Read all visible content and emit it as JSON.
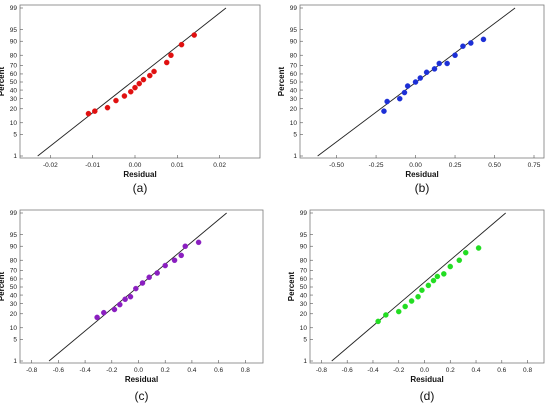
{
  "chart_data": [
    {
      "type": "scatter",
      "caption": "(a)",
      "xlabel": "Residual",
      "ylabel": "Percent",
      "xlim": [
        -0.026,
        0.026
      ],
      "yscale": "normal-probability",
      "x_ticks": [
        -0.02,
        -0.01,
        0.0,
        0.01,
        0.02
      ],
      "x_tick_labels": [
        "-0.02",
        "-0.01",
        "0.00",
        "0.01",
        "0.02"
      ],
      "y_ticks": [
        1,
        5,
        10,
        20,
        30,
        40,
        50,
        60,
        70,
        80,
        90,
        95,
        99
      ],
      "point_color": "#e01010",
      "fit_line": {
        "x1": -0.023,
        "y1": 1,
        "x2": 0.0215,
        "y2": 99
      },
      "points": [
        {
          "x": -0.011,
          "y": 16
        },
        {
          "x": -0.0095,
          "y": 18
        },
        {
          "x": -0.0065,
          "y": 21
        },
        {
          "x": -0.0045,
          "y": 28
        },
        {
          "x": -0.0025,
          "y": 33
        },
        {
          "x": -0.001,
          "y": 38
        },
        {
          "x": 0.0,
          "y": 43
        },
        {
          "x": 0.001,
          "y": 48
        },
        {
          "x": 0.002,
          "y": 53
        },
        {
          "x": 0.0035,
          "y": 58
        },
        {
          "x": 0.0045,
          "y": 63
        },
        {
          "x": 0.0075,
          "y": 73
        },
        {
          "x": 0.0085,
          "y": 80
        },
        {
          "x": 0.011,
          "y": 88
        },
        {
          "x": 0.014,
          "y": 93
        }
      ]
    },
    {
      "type": "scatter",
      "caption": "(b)",
      "xlabel": "Residual",
      "ylabel": "Percent",
      "xlim": [
        -0.7,
        0.75
      ],
      "yscale": "normal-probability",
      "x_ticks": [
        -0.5,
        -0.25,
        0.0,
        0.25,
        0.5,
        0.75
      ],
      "x_tick_labels": [
        "-0.50",
        "-0.25",
        "0.00",
        "0.25",
        "0.50",
        "0.75"
      ],
      "y_ticks": [
        1,
        5,
        10,
        20,
        30,
        40,
        50,
        60,
        70,
        80,
        90,
        95,
        99
      ],
      "point_color": "#1c2fd6",
      "fit_line": {
        "x1": -0.62,
        "y1": 1,
        "x2": 0.63,
        "y2": 99
      },
      "points": [
        {
          "x": -0.2,
          "y": 18
        },
        {
          "x": -0.18,
          "y": 27
        },
        {
          "x": -0.1,
          "y": 30
        },
        {
          "x": -0.07,
          "y": 37
        },
        {
          "x": -0.05,
          "y": 45
        },
        {
          "x": 0.0,
          "y": 50
        },
        {
          "x": 0.03,
          "y": 55
        },
        {
          "x": 0.07,
          "y": 62
        },
        {
          "x": 0.12,
          "y": 66
        },
        {
          "x": 0.15,
          "y": 72
        },
        {
          "x": 0.2,
          "y": 72
        },
        {
          "x": 0.25,
          "y": 80
        },
        {
          "x": 0.3,
          "y": 87
        },
        {
          "x": 0.35,
          "y": 89
        },
        {
          "x": 0.43,
          "y": 91
        }
      ]
    },
    {
      "type": "scatter",
      "caption": "(c)",
      "xlabel": "Residual",
      "ylabel": "Percent",
      "xlim": [
        -0.85,
        0.85
      ],
      "yscale": "normal-probability",
      "x_ticks": [
        -0.8,
        -0.6,
        -0.4,
        -0.2,
        0.0,
        0.2,
        0.4,
        0.6,
        0.8
      ],
      "x_tick_labels": [
        "-0.8",
        "-0.6",
        "-0.4",
        "-0.2",
        "0.0",
        "0.2",
        "0.4",
        "0.6",
        "0.8"
      ],
      "y_ticks": [
        1,
        5,
        10,
        20,
        30,
        40,
        50,
        60,
        70,
        80,
        90,
        95,
        99
      ],
      "point_color": "#8a1ec0",
      "fit_line": {
        "x1": -0.67,
        "y1": 1,
        "x2": 0.66,
        "y2": 99
      },
      "points": [
        {
          "x": -0.31,
          "y": 17
        },
        {
          "x": -0.26,
          "y": 21
        },
        {
          "x": -0.18,
          "y": 24
        },
        {
          "x": -0.14,
          "y": 29
        },
        {
          "x": -0.1,
          "y": 35
        },
        {
          "x": -0.06,
          "y": 38
        },
        {
          "x": -0.02,
          "y": 48
        },
        {
          "x": 0.03,
          "y": 55
        },
        {
          "x": 0.08,
          "y": 62
        },
        {
          "x": 0.14,
          "y": 67
        },
        {
          "x": 0.2,
          "y": 75
        },
        {
          "x": 0.27,
          "y": 80
        },
        {
          "x": 0.32,
          "y": 84
        },
        {
          "x": 0.35,
          "y": 90
        },
        {
          "x": 0.45,
          "y": 92
        }
      ]
    },
    {
      "type": "scatter",
      "caption": "(d)",
      "xlabel": "Residual",
      "ylabel": "Percent",
      "xlim": [
        -0.85,
        0.85
      ],
      "yscale": "normal-probability",
      "x_ticks": [
        -0.8,
        -0.6,
        -0.4,
        -0.2,
        0.0,
        0.2,
        0.4,
        0.6,
        0.8
      ],
      "x_tick_labels": [
        "-0.8",
        "-0.6",
        "-0.4",
        "-0.2",
        "0.0",
        "0.2",
        "0.4",
        "0.6",
        "0.8"
      ],
      "y_ticks": [
        1,
        5,
        10,
        20,
        30,
        40,
        50,
        60,
        70,
        80,
        90,
        95,
        99
      ],
      "point_color": "#22dd22",
      "fit_line": {
        "x1": -0.72,
        "y1": 1,
        "x2": 0.63,
        "y2": 99
      },
      "points": [
        {
          "x": -0.36,
          "y": 14
        },
        {
          "x": -0.3,
          "y": 19
        },
        {
          "x": -0.2,
          "y": 22
        },
        {
          "x": -0.15,
          "y": 27
        },
        {
          "x": -0.1,
          "y": 33
        },
        {
          "x": -0.05,
          "y": 38
        },
        {
          "x": -0.02,
          "y": 46
        },
        {
          "x": 0.03,
          "y": 52
        },
        {
          "x": 0.07,
          "y": 58
        },
        {
          "x": 0.1,
          "y": 63
        },
        {
          "x": 0.15,
          "y": 66
        },
        {
          "x": 0.2,
          "y": 74
        },
        {
          "x": 0.27,
          "y": 80
        },
        {
          "x": 0.32,
          "y": 86
        },
        {
          "x": 0.42,
          "y": 89
        }
      ]
    }
  ]
}
